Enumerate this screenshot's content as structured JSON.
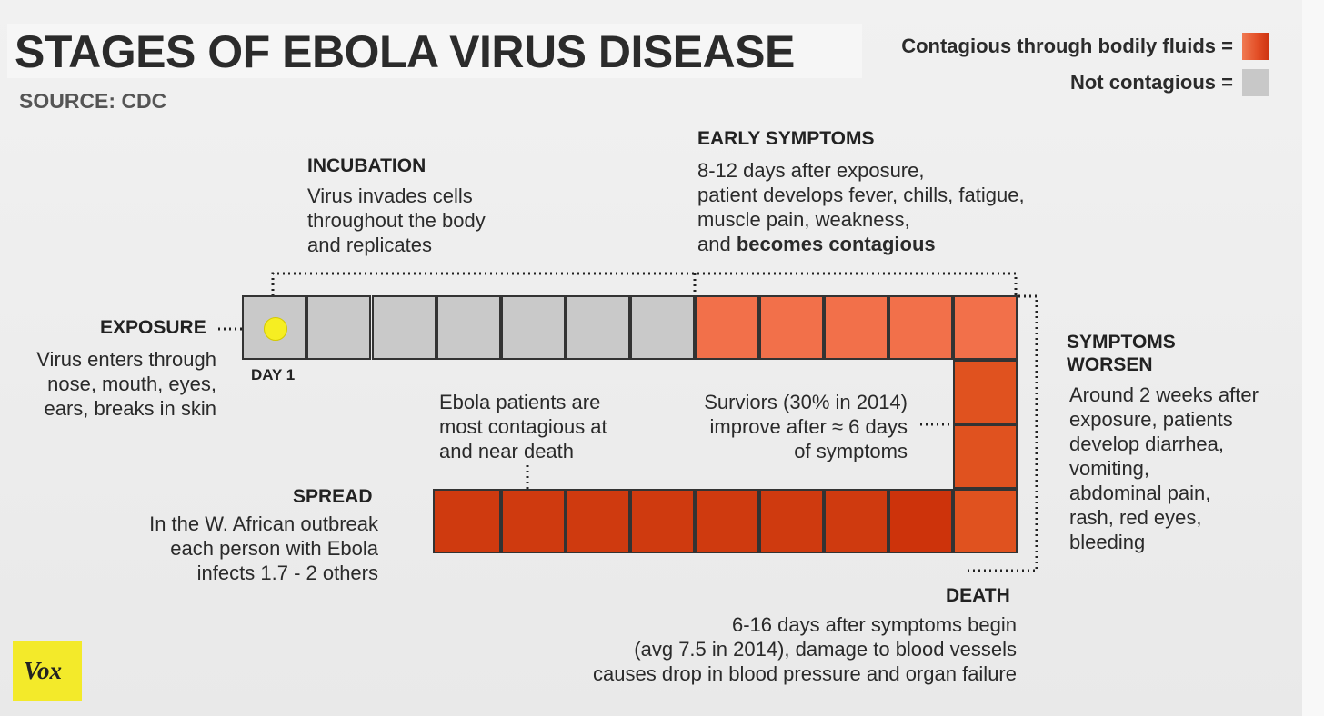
{
  "header": {
    "title": "STAGES OF EBOLA VIRUS DISEASE",
    "source": "SOURCE: CDC"
  },
  "legend": {
    "contagious_label": "Contagious through bodily fluids =",
    "not_contagious_label": "Not contagious ="
  },
  "stages": {
    "exposure": {
      "label": "EXPOSURE",
      "text": "Virus enters through\nnose, mouth, eyes,\nears, breaks in skin"
    },
    "day_label": "DAY 1",
    "incubation": {
      "label": "INCUBATION",
      "text": "Virus invades cells\nthroughout the body\nand replicates"
    },
    "early": {
      "label": "EARLY SYMPTOMS",
      "text": "8-12 days after exposure,\npatient develops fever, chills, fatigue,\nmuscle pain, weakness,\nand ",
      "bold": "becomes contagious"
    },
    "worsen": {
      "label": "SYMPTOMS\nWORSEN",
      "text": "Around 2 weeks after\nexposure, patients\ndevelop diarrhea,\nvomiting,\nabdominal pain,\nrash, red eyes,\nbleeding"
    },
    "contagious_note": "Ebola patients are\nmost contagious at\nand near death",
    "survivors_note": "Surviors (30% in 2014)\nimprove after ≈ 6 days\nof symptoms",
    "spread": {
      "label": "SPREAD",
      "text": "In the W. African outbreak\neach person with Ebola\ninfects 1.7 - 2 others"
    },
    "death": {
      "label": "DEATH",
      "text": "6-16 days after symptoms begin\n(avg 7.5 in 2014), damage to blood vessels\ncauses drop in blood pressure and organ failure"
    }
  },
  "timeline": {
    "not_contagious_days": 7,
    "contagious_days": 16
  },
  "brand": {
    "logo": "Vox"
  },
  "colors": {
    "not_contagious": "#c9c9c9",
    "contagious": "#e0521f",
    "marker": "#f6ee22",
    "logo_bg": "#f3ea2a"
  }
}
